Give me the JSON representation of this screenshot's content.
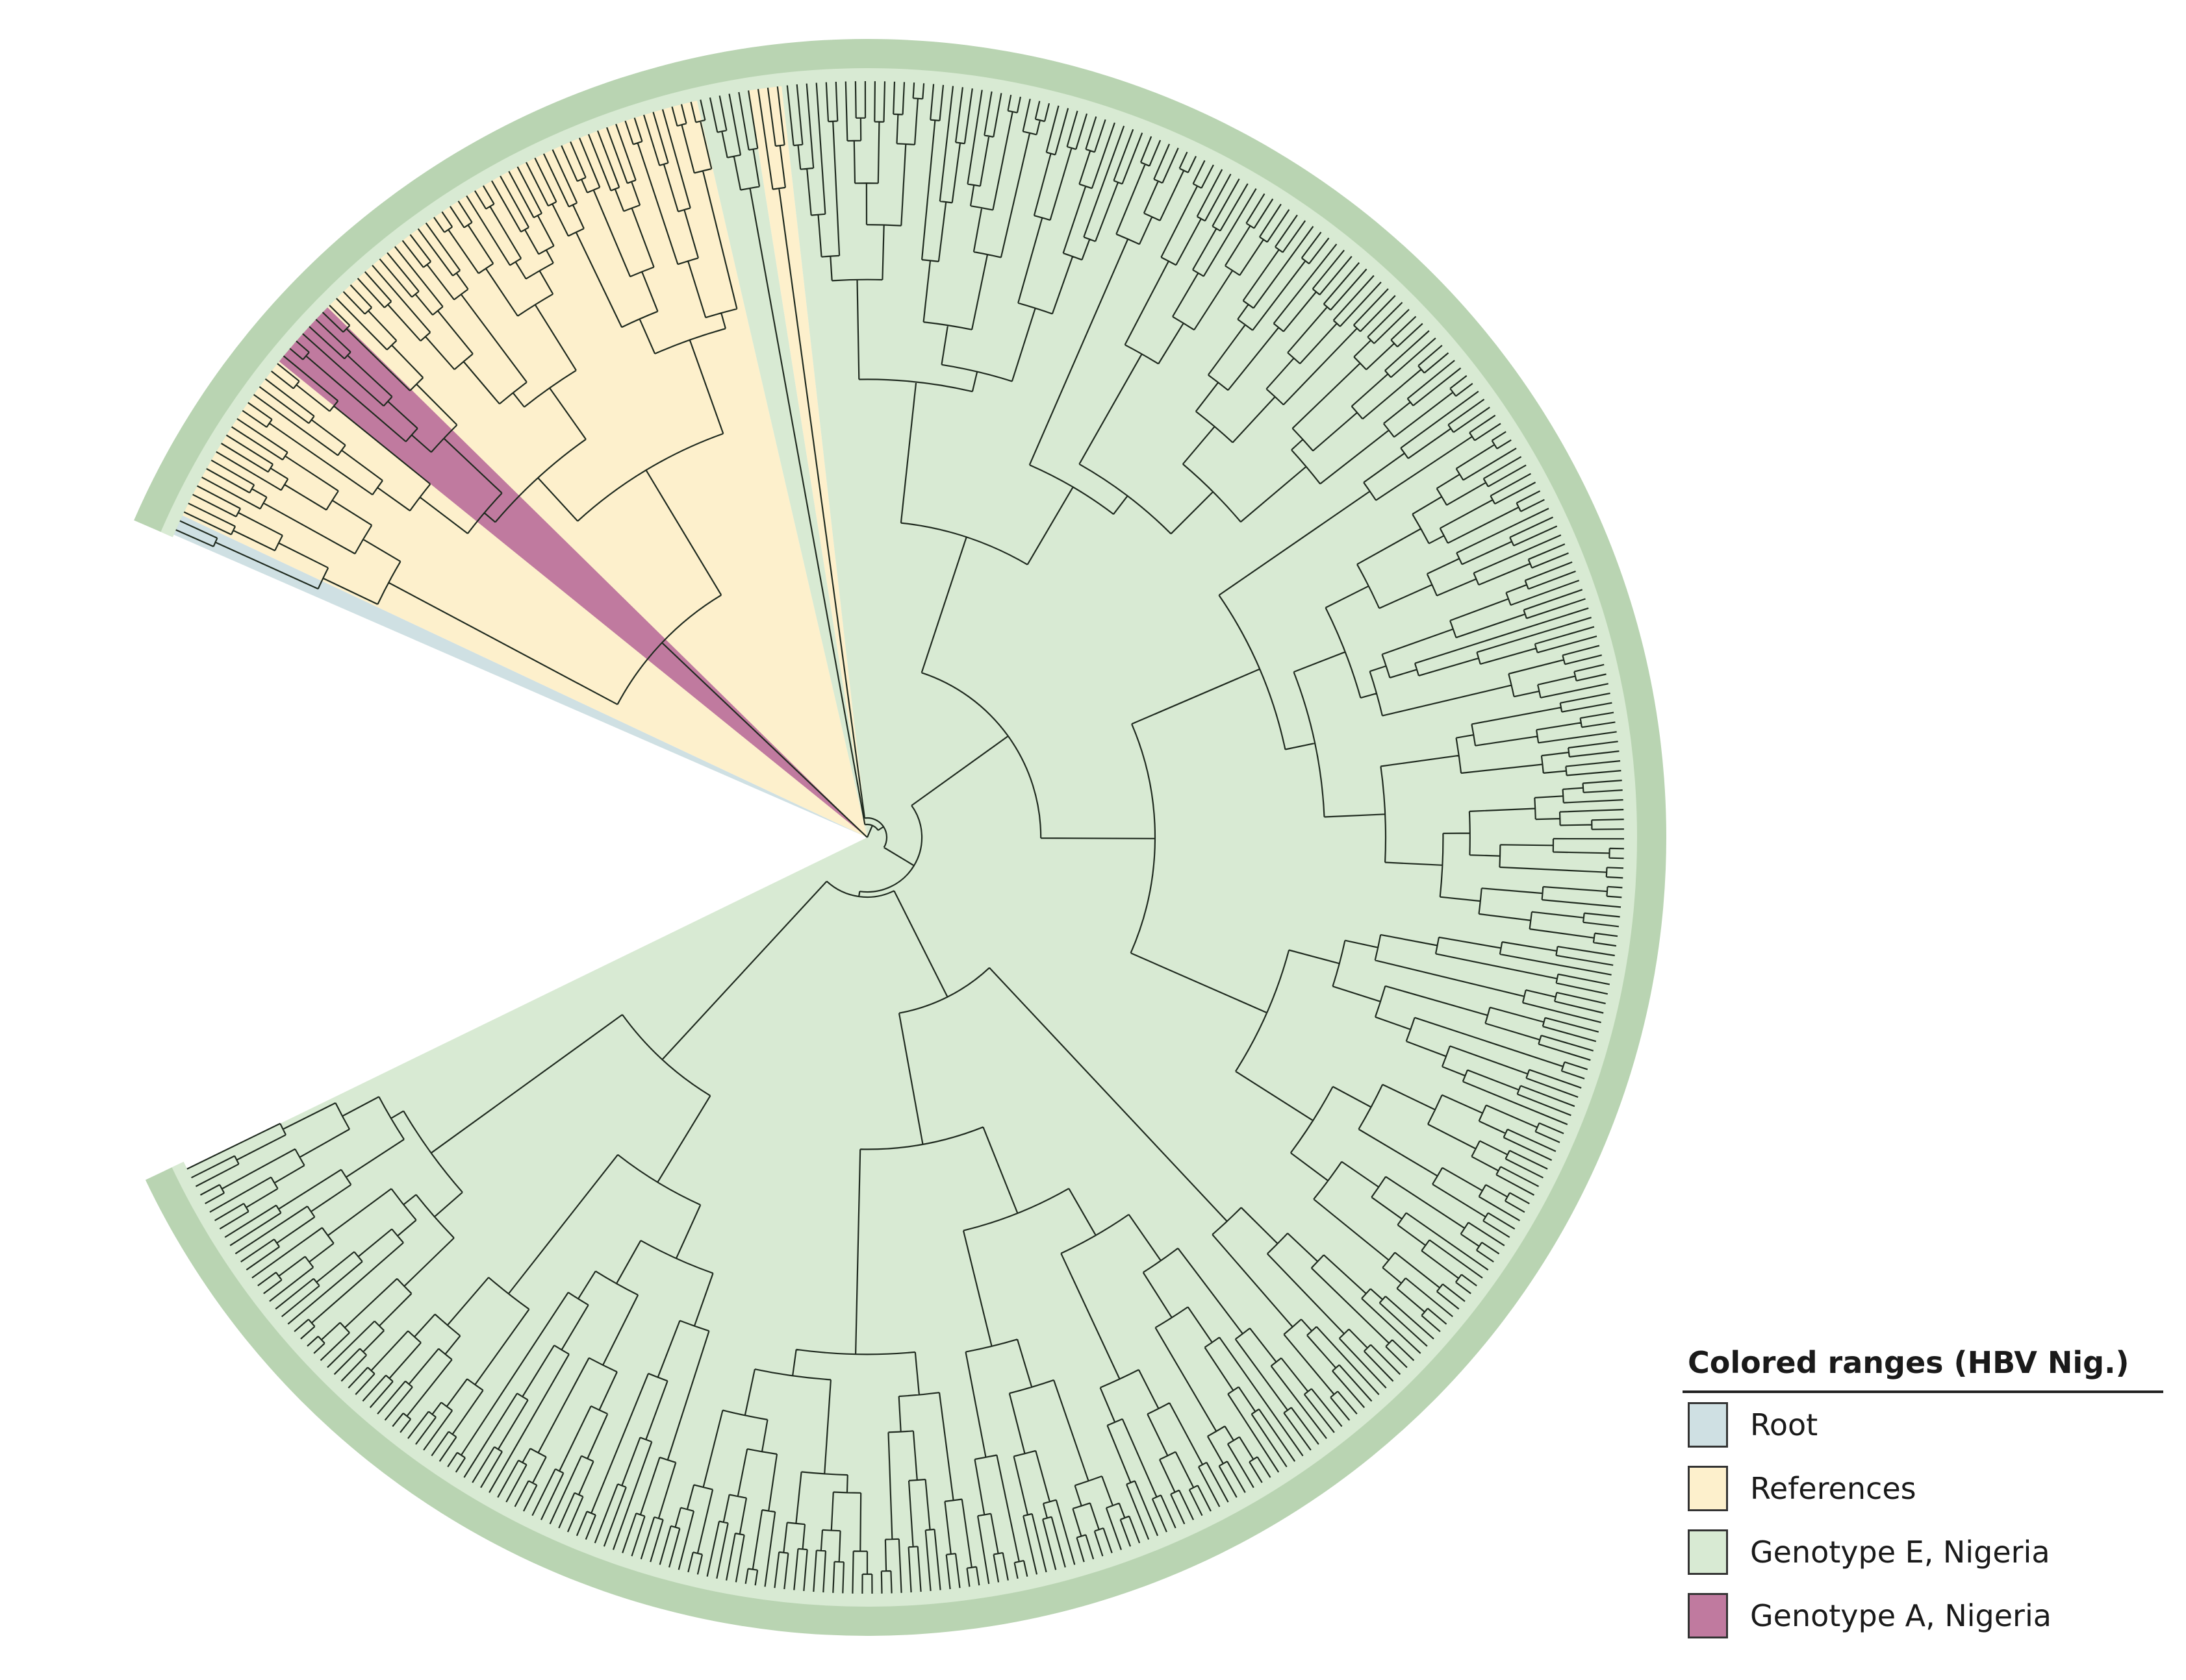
{
  "diagram": {
    "type": "circular-phylogenetic-tree",
    "tip_count": 420,
    "colors": {
      "root": "#cfe0e3",
      "references": "#fdf0cc",
      "genotype_e": "#d8ead3",
      "genotype_a": "#c07a9f",
      "branch": "#1f2a1f",
      "tip_band": "#b9d4b2"
    }
  },
  "legend": {
    "title": "Colored ranges (HBV Nig.)",
    "items": [
      {
        "label": "Root",
        "color": "#cfe0e3"
      },
      {
        "label": "References",
        "color": "#fdf0cc"
      },
      {
        "label": "Genotype E, Nigeria",
        "color": "#d8ead3"
      },
      {
        "label": "Genotype A, Nigeria",
        "color": "#c07a9f"
      }
    ]
  }
}
